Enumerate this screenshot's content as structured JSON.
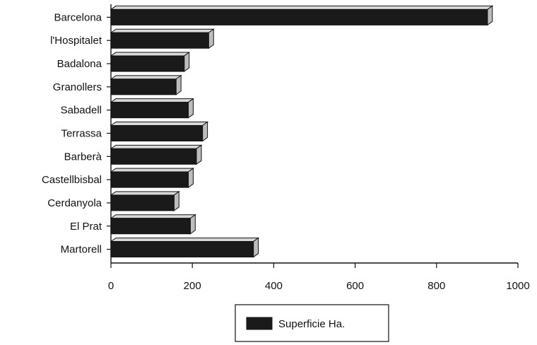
{
  "chart_data": {
    "type": "bar",
    "orientation": "horizontal",
    "categories": [
      "Barcelona",
      "l'Hospitalet",
      "Badalona",
      "Granollers",
      "Sabadell",
      "Terrassa",
      "Barberà",
      "Castellbisbal",
      "Cerdanyola",
      "El Prat",
      "Martorell"
    ],
    "series": [
      {
        "name": "Superficie Ha.",
        "values": [
          925,
          240,
          180,
          160,
          190,
          225,
          210,
          190,
          155,
          195,
          350
        ]
      }
    ],
    "xlim": [
      0,
      1000
    ],
    "xticks": [
      0,
      200,
      400,
      600,
      800,
      1000
    ],
    "tick_labels": [
      "0",
      "200",
      "400",
      "600",
      "800",
      "1000"
    ],
    "grid": false,
    "legend_position": "bottom",
    "colors": {
      "bar_front": "#1a1a1a",
      "bar_top": "#d8d8d8",
      "bar_side": "#bdbdbd",
      "outline": "#111111"
    }
  }
}
